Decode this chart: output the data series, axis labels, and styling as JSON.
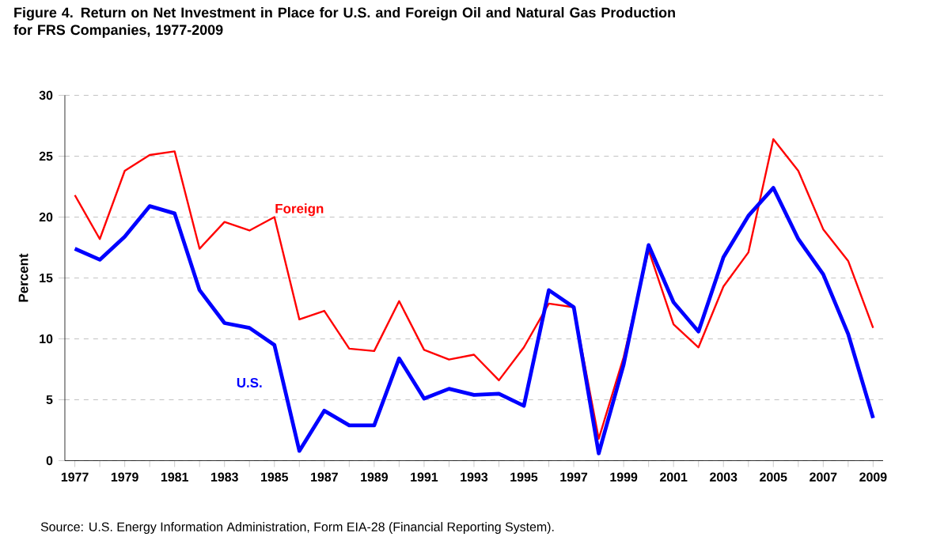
{
  "chart_data": {
    "type": "line",
    "title": "Figure 4.  Return on Net Investment in Place for U.S. and Foreign Oil and Natural Gas Production for FRS Companies, 1977-2009",
    "ylabel": "Percent",
    "categories": [
      "1977",
      null,
      "1979",
      null,
      "1981",
      null,
      "1983",
      null,
      "1985",
      null,
      "1987",
      null,
      "1989",
      null,
      "1991",
      null,
      "1993",
      null,
      "1995",
      null,
      "1997",
      null,
      "1999",
      null,
      "2001",
      null,
      "2003",
      null,
      "2005",
      null,
      "2007",
      null,
      "2009"
    ],
    "series": [
      {
        "name": "Foreign",
        "color": "#ff0000",
        "values": [
          21.8,
          18.2,
          23.8,
          25.1,
          25.4,
          17.4,
          19.6,
          18.9,
          20.0,
          11.6,
          12.3,
          9.2,
          9.0,
          13.1,
          9.1,
          8.3,
          8.7,
          6.6,
          9.3,
          12.9,
          12.6,
          1.8,
          8.5,
          17.3,
          11.2,
          9.3,
          14.3,
          17.1,
          26.4,
          23.8,
          19.0,
          16.4,
          10.9
        ]
      },
      {
        "name": "U.S.",
        "color": "#0000ff",
        "values": [
          17.4,
          16.5,
          18.4,
          20.9,
          20.3,
          14.0,
          11.3,
          10.9,
          9.5,
          0.8,
          4.1,
          2.9,
          2.9,
          8.4,
          5.1,
          5.9,
          5.4,
          5.5,
          4.5,
          14.0,
          12.6,
          0.6,
          7.9,
          17.7,
          13.0,
          10.6,
          16.7,
          20.1,
          22.4,
          18.2,
          15.3,
          10.4,
          3.5
        ]
      }
    ],
    "ylim": [
      0,
      30
    ],
    "yticks": [
      0,
      5,
      10,
      15,
      20,
      25,
      30
    ],
    "grid": "y",
    "marker": "none",
    "line_style": "solid",
    "annotations": [
      "Source: U.S. Energy Information Administration, Form EIA-28 (Financial Reporting System)."
    ]
  }
}
